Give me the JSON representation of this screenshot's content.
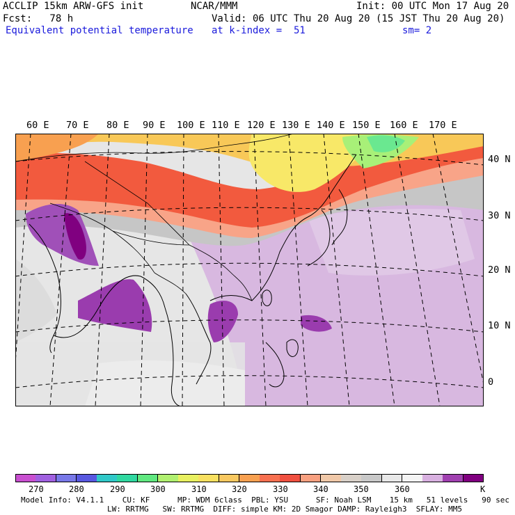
{
  "header": {
    "line1_left": "ACCLIP 15km ARW-GFS init",
    "line1_center": "NCAR/MMM",
    "line1_right": "Init: 00 UTC Mon 17 Aug 20",
    "line2_left": "Fcst:   78 h",
    "line2_right": "Valid: 06 UTC Thu 20 Aug 20 (15 JST Thu 20 Aug 20)",
    "field_name": "Equivalent potential temperature",
    "level": "at k-index =  51",
    "smoothing": "sm= 2"
  },
  "map": {
    "lon_labels": [
      "60 E",
      "70 E",
      "80 E",
      "90 E",
      "100 E",
      "110 E",
      "120 E",
      "130 E",
      "140 E",
      "150 E",
      "160 E",
      "170 E"
    ],
    "lat_labels": [
      "40 N",
      "30 N",
      "20 N",
      "10 N",
      "0"
    ]
  },
  "colorbar": {
    "colors": [
      "#c84fd0",
      "#a060e0",
      "#7878e8",
      "#5858e0",
      "#30c8c8",
      "#30d8a0",
      "#60e880",
      "#b0f070",
      "#e8f060",
      "#f8e060",
      "#f8c860",
      "#f8a050",
      "#f87050",
      "#f05040",
      "#f8a080",
      "#f0c8a8",
      "#d8d0c8",
      "#c8c8c8",
      "#e8e8e8",
      "#f4f4f4",
      "#d8b0e0",
      "#a040b0",
      "#800080"
    ],
    "labels": [
      "270",
      "280",
      "290",
      "300",
      "310",
      "320",
      "330",
      "340",
      "350",
      "360",
      "K"
    ],
    "unit": "K"
  },
  "footer": {
    "line1": "Model Info: V4.1.1    CU: KF      MP: WDM 6class  PBL: YSU      SF: Noah LSM    15 km   51 levels   90 sec",
    "line2": "LW: RRTMG   SW: RRTMG  DIFF: simple KM: 2D Smagor DAMP: Rayleigh3  SFLAY: MM5"
  }
}
